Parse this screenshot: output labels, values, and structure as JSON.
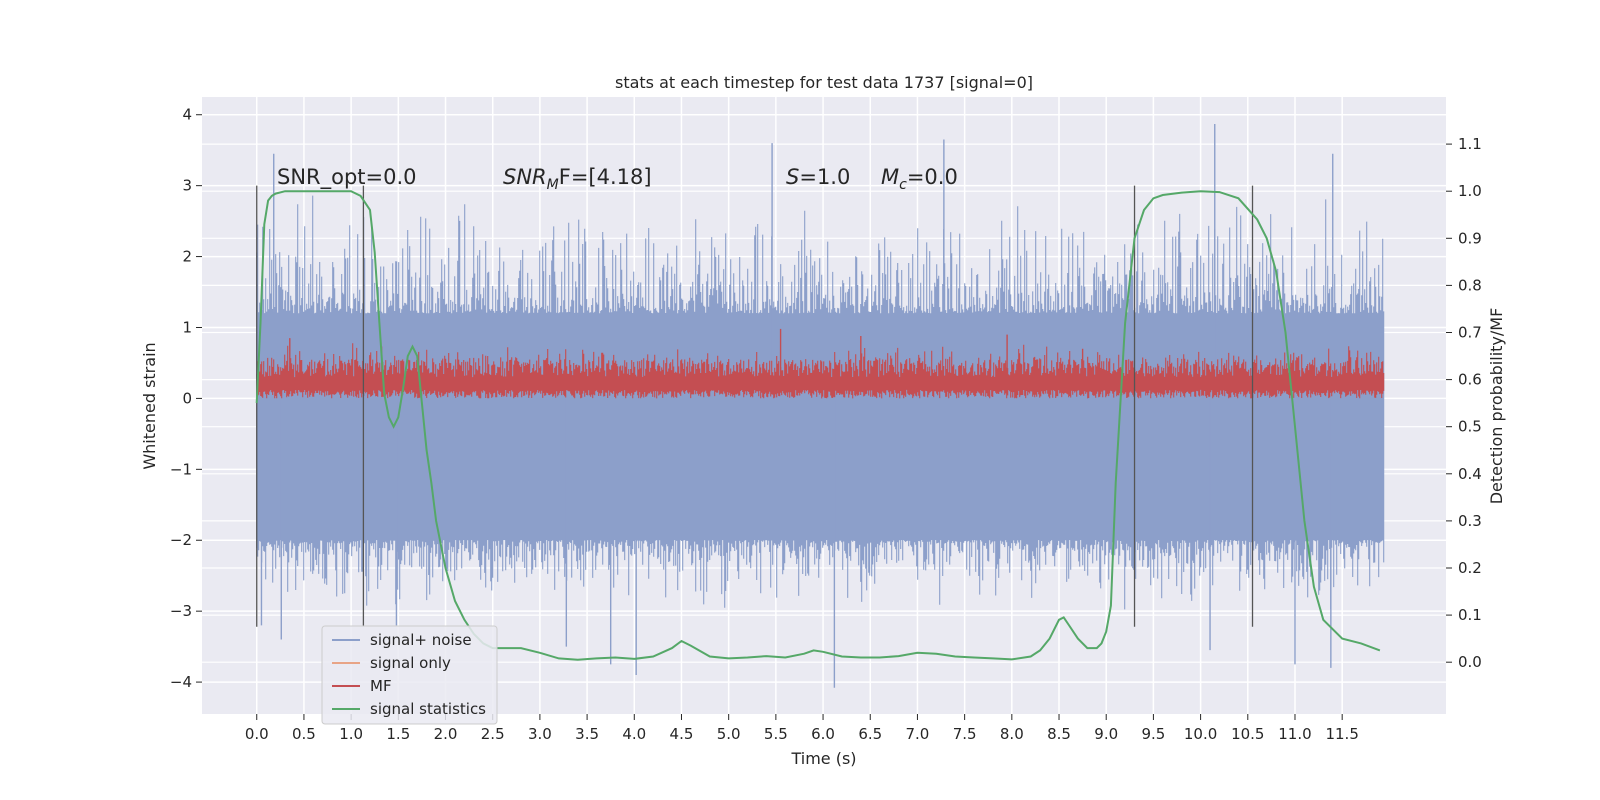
{
  "chart_data": {
    "type": "line",
    "title": "stats at each timestep for test data 1737 [signal=0]",
    "xlabel": "Time (s)",
    "ylabel": "Whitened strain",
    "y2label": "Detection probability/MF",
    "xlim": [
      -0.58,
      12.6
    ],
    "ylim": [
      -4.45,
      4.25
    ],
    "y2lim": [
      -0.11,
      1.2
    ],
    "xticks": [
      "0.0",
      "0.5",
      "1.0",
      "1.5",
      "2.0",
      "2.5",
      "3.0",
      "3.5",
      "4.0",
      "4.5",
      "5.0",
      "5.5",
      "6.0",
      "6.5",
      "7.0",
      "7.5",
      "8.0",
      "8.5",
      "9.0",
      "9.5",
      "10.0",
      "10.5",
      "11.0",
      "11.5"
    ],
    "yticks": [
      "4",
      "3",
      "2",
      "1",
      "0",
      "−1",
      "−2",
      "−3",
      "−4"
    ],
    "y2ticks": [
      "1.1",
      "1.0",
      "0.9",
      "0.8",
      "0.7",
      "0.6",
      "0.5",
      "0.4",
      "0.3",
      "0.2",
      "0.1",
      "0.0"
    ],
    "grid": true,
    "legend_position": "lower-left",
    "annotations": {
      "snr_opt": "SNR_opt=0.0",
      "snr_mf_label": "SNR",
      "snr_mf_sub": "M",
      "snr_mf_rest": "F=[4.18]",
      "s_label": "S",
      "s_rest": "=1.0",
      "mc_label": "M",
      "mc_sub": "c",
      "mc_rest": "=0.0"
    },
    "colors": {
      "noise": "#8c9fca",
      "signal_only": "#e8a486",
      "mf": "#c44e52",
      "stat": "#55a868",
      "background": "#eaeaf2",
      "markers": "#555555"
    },
    "series": [
      {
        "name": "signal+ noise",
        "axis": "left",
        "envelope": {
          "x_start": 0.0,
          "x_end": 11.95,
          "typical_low": -2.0,
          "typical_high": 1.2,
          "max": 3.87,
          "min": -4.08
        },
        "spikes": [
          {
            "x": 0.18,
            "y": 3.45
          },
          {
            "x": 0.05,
            "y": -3.2
          },
          {
            "x": 0.26,
            "y": -3.4
          },
          {
            "x": 1.48,
            "y": -3.2
          },
          {
            "x": 3.28,
            "y": -3.5
          },
          {
            "x": 3.75,
            "y": -3.75
          },
          {
            "x": 4.02,
            "y": -3.9
          },
          {
            "x": 5.46,
            "y": 3.6
          },
          {
            "x": 6.12,
            "y": -4.08
          },
          {
            "x": 7.28,
            "y": 3.65
          },
          {
            "x": 10.1,
            "y": -3.55
          },
          {
            "x": 10.15,
            "y": 3.87
          },
          {
            "x": 11.0,
            "y": -3.75
          },
          {
            "x": 11.38,
            "y": -3.8
          },
          {
            "x": 11.4,
            "y": 3.45
          }
        ]
      },
      {
        "name": "signal only",
        "axis": "left",
        "values": []
      },
      {
        "name": "MF",
        "axis": "left",
        "envelope": {
          "x_start": 0.0,
          "x_end": 11.95,
          "low": 0.0,
          "typical_high": 0.55,
          "max": 0.98
        },
        "spikes": [
          {
            "x": 5.55,
            "y": 0.98
          },
          {
            "x": 6.4,
            "y": 0.88
          },
          {
            "x": 7.95,
            "y": 0.9
          },
          {
            "x": 0.35,
            "y": 0.85
          },
          {
            "x": 8.75,
            "y": 0.7
          }
        ]
      },
      {
        "name": "signal statistics",
        "axis": "right",
        "x": [
          0.0,
          0.04,
          0.08,
          0.12,
          0.16,
          0.2,
          0.3,
          0.5,
          0.8,
          1.0,
          1.1,
          1.2,
          1.25,
          1.3,
          1.35,
          1.4,
          1.45,
          1.5,
          1.55,
          1.6,
          1.65,
          1.7,
          1.75,
          1.8,
          1.85,
          1.9,
          2.0,
          2.1,
          2.2,
          2.3,
          2.4,
          2.5,
          2.6,
          2.8,
          3.0,
          3.2,
          3.4,
          3.6,
          3.8,
          4.0,
          4.2,
          4.4,
          4.5,
          4.6,
          4.8,
          5.0,
          5.2,
          5.4,
          5.6,
          5.8,
          5.9,
          6.0,
          6.2,
          6.4,
          6.6,
          6.8,
          7.0,
          7.2,
          7.4,
          7.6,
          7.8,
          8.0,
          8.2,
          8.3,
          8.4,
          8.5,
          8.55,
          8.6,
          8.7,
          8.8,
          8.9,
          8.95,
          9.0,
          9.05,
          9.1,
          9.2,
          9.3,
          9.4,
          9.5,
          9.6,
          9.8,
          10.0,
          10.2,
          10.4,
          10.6,
          10.7,
          10.8,
          10.9,
          11.0,
          11.1,
          11.2,
          11.3,
          11.5,
          11.7,
          11.9
        ],
        "values": [
          0.55,
          0.72,
          0.93,
          0.98,
          0.99,
          0.995,
          1.0,
          1.0,
          1.0,
          1.0,
          0.99,
          0.96,
          0.87,
          0.72,
          0.57,
          0.52,
          0.5,
          0.52,
          0.58,
          0.65,
          0.67,
          0.65,
          0.55,
          0.45,
          0.38,
          0.3,
          0.2,
          0.13,
          0.09,
          0.06,
          0.04,
          0.03,
          0.03,
          0.03,
          0.02,
          0.008,
          0.005,
          0.008,
          0.01,
          0.007,
          0.012,
          0.03,
          0.045,
          0.035,
          0.012,
          0.008,
          0.01,
          0.013,
          0.01,
          0.018,
          0.025,
          0.022,
          0.012,
          0.01,
          0.01,
          0.013,
          0.02,
          0.018,
          0.012,
          0.01,
          0.008,
          0.006,
          0.012,
          0.025,
          0.05,
          0.09,
          0.095,
          0.08,
          0.05,
          0.03,
          0.03,
          0.04,
          0.065,
          0.12,
          0.38,
          0.72,
          0.9,
          0.96,
          0.985,
          0.992,
          0.997,
          1.0,
          0.998,
          0.985,
          0.94,
          0.9,
          0.83,
          0.7,
          0.5,
          0.3,
          0.16,
          0.09,
          0.05,
          0.04,
          0.025
        ]
      }
    ],
    "marker_lines": [
      {
        "x": 0.0,
        "y_from": -3.22,
        "y_to": 3.0
      },
      {
        "x": 1.13,
        "y_from": -3.22,
        "y_to": 3.0
      },
      {
        "x": 9.3,
        "y_from": -3.22,
        "y_to": 3.0
      },
      {
        "x": 10.55,
        "y_from": -3.22,
        "y_to": 3.0
      }
    ]
  }
}
